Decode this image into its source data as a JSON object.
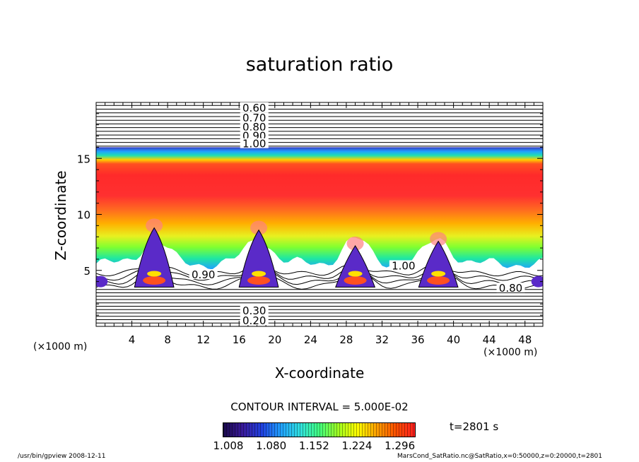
{
  "chart_data": {
    "type": "heatmap",
    "title": "saturation ratio",
    "xlabel": "X-coordinate",
    "ylabel": "Z-coordinate",
    "x_unit_label": "(×1000 m)",
    "xlim": [
      0,
      50
    ],
    "ylim": [
      0,
      20
    ],
    "x_ticks": [
      4,
      8,
      12,
      16,
      20,
      24,
      28,
      32,
      36,
      40,
      44,
      48
    ],
    "y_ticks": [
      5,
      10,
      15
    ],
    "contour_interval_label": "CONTOUR INTERVAL = 5.000E-02",
    "contour_labels": [
      {
        "text": "0.60",
        "x": 17.7,
        "z": 19.5
      },
      {
        "text": "0.70",
        "x": 17.7,
        "z": 18.6
      },
      {
        "text": "0.80",
        "x": 17.7,
        "z": 17.8
      },
      {
        "text": "0.90",
        "x": 17.7,
        "z": 17.0
      },
      {
        "text": "1.00",
        "x": 17.7,
        "z": 16.3
      },
      {
        "text": "0.90",
        "x": 12.0,
        "z": 4.6
      },
      {
        "text": "1.00",
        "x": 34.4,
        "z": 5.4
      },
      {
        "text": "0.80",
        "x": 46.4,
        "z": 3.4
      },
      {
        "text": "0.30",
        "x": 17.7,
        "z": 1.4
      },
      {
        "text": "0.20",
        "x": 17.7,
        "z": 0.5
      }
    ],
    "colorbar": {
      "min": 1.008,
      "max": 1.332,
      "tick_labels": [
        "1.008",
        "1.080",
        "1.152",
        "1.224",
        "1.296"
      ],
      "colors": [
        "#1a0a4a",
        "#3a1a9a",
        "#2040e0",
        "#20a0ff",
        "#30e0e0",
        "#40ff80",
        "#a0ff20",
        "#ffff00",
        "#ffa000",
        "#ff5000",
        "#ff2020"
      ]
    },
    "cloud_peaks_km": [
      {
        "x": 6.5,
        "top": 8.8
      },
      {
        "x": 18.2,
        "top": 8.6
      },
      {
        "x": 29.0,
        "top": 7.2
      },
      {
        "x": 38.3,
        "top": 7.6
      }
    ],
    "time_label": "t=2801 s"
  },
  "footer": {
    "left": "/usr/bin/gpview   2008-12-11",
    "right": "MarsCond_SatRatio.nc@SatRatio,x=0:50000,z=0:20000,t=2801"
  }
}
